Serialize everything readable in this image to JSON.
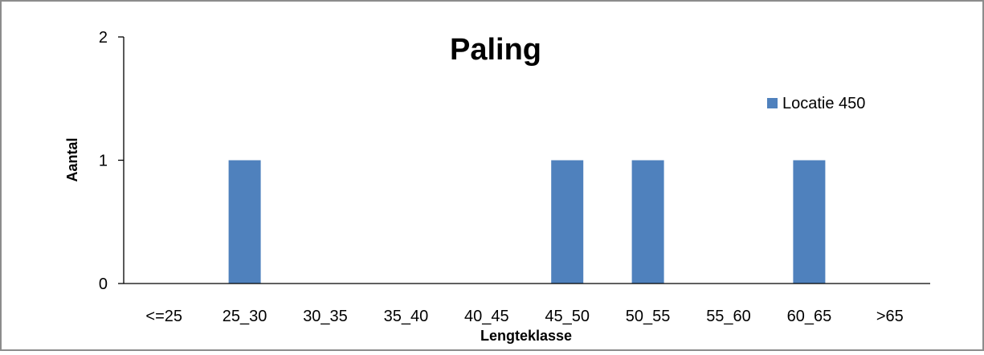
{
  "chart_data": {
    "type": "bar",
    "title": "Paling",
    "xlabel": "Lengteklasse",
    "ylabel": "Aantal",
    "categories": [
      "<=25",
      "25_30",
      "30_35",
      "35_40",
      "40_45",
      "45_50",
      "50_55",
      "55_60",
      "60_65",
      ">65"
    ],
    "series": [
      {
        "name": "Locatie 450",
        "values": [
          0,
          1,
          0,
          0,
          0,
          1,
          1,
          0,
          1,
          0
        ]
      }
    ],
    "ylim": [
      0,
      2
    ],
    "yticks": [
      0,
      1,
      2
    ],
    "grid": false,
    "legend": "top-right",
    "colors": {
      "bar": "#4f81bd",
      "axis": "#000000",
      "frame": "#8c8c8c"
    }
  }
}
